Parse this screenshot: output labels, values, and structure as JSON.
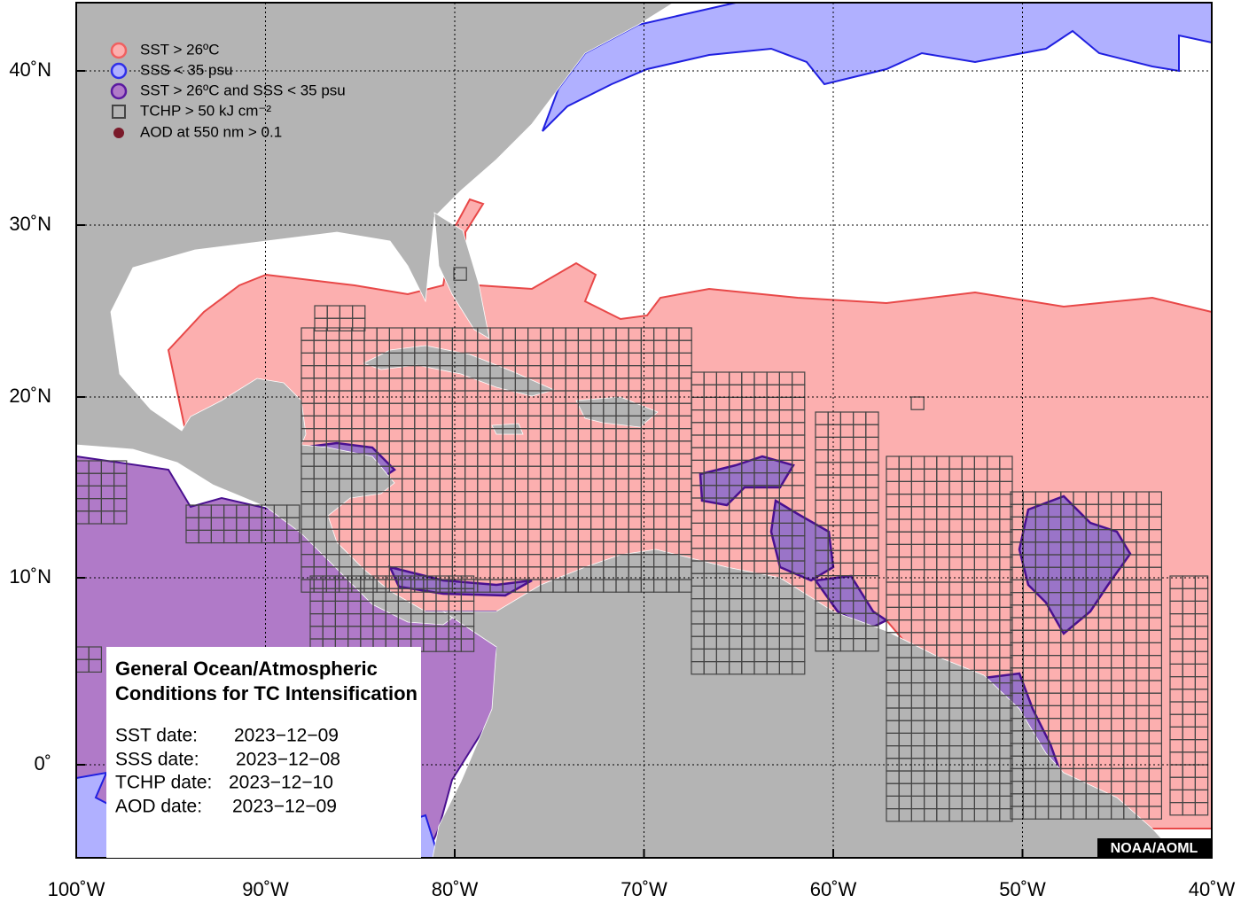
{
  "legend": {
    "items": [
      "SST > 26ºC",
      "SSS < 35 psu",
      "SST > 26ºC and SSS < 35 psu",
      "TCHP > 50 kJ cm⁻²",
      "AOD at 550 nm > 0.1"
    ]
  },
  "info": {
    "title": [
      "General Ocean/Atmospheric",
      "Conditions for TC Intensification"
    ],
    "dates": [
      {
        "label": "SST date:",
        "value": "2023−12−09"
      },
      {
        "label": "SSS date:",
        "value": "2023−12−08"
      },
      {
        "label": "TCHP date:",
        "value": "2023−12−10"
      },
      {
        "label": "AOD date:",
        "value": "2023−12−09"
      }
    ]
  },
  "axes": {
    "lon_ticks": [
      {
        "value": -100,
        "label": "100˚W"
      },
      {
        "value": -90,
        "label": "90˚W"
      },
      {
        "value": -80,
        "label": "80˚W"
      },
      {
        "value": -70,
        "label": "70˚W"
      },
      {
        "value": -60,
        "label": "60˚W"
      },
      {
        "value": -50,
        "label": "50˚W"
      },
      {
        "value": -40,
        "label": "40˚W"
      }
    ],
    "lat_ticks": [
      {
        "value": 0,
        "label": "0˚"
      },
      {
        "value": 10,
        "label": "10˚N"
      },
      {
        "value": 20,
        "label": "20˚N"
      },
      {
        "value": 30,
        "label": "30˚N"
      },
      {
        "value": 40,
        "label": "40˚N"
      }
    ]
  },
  "credit": "NOAA/AOML"
}
